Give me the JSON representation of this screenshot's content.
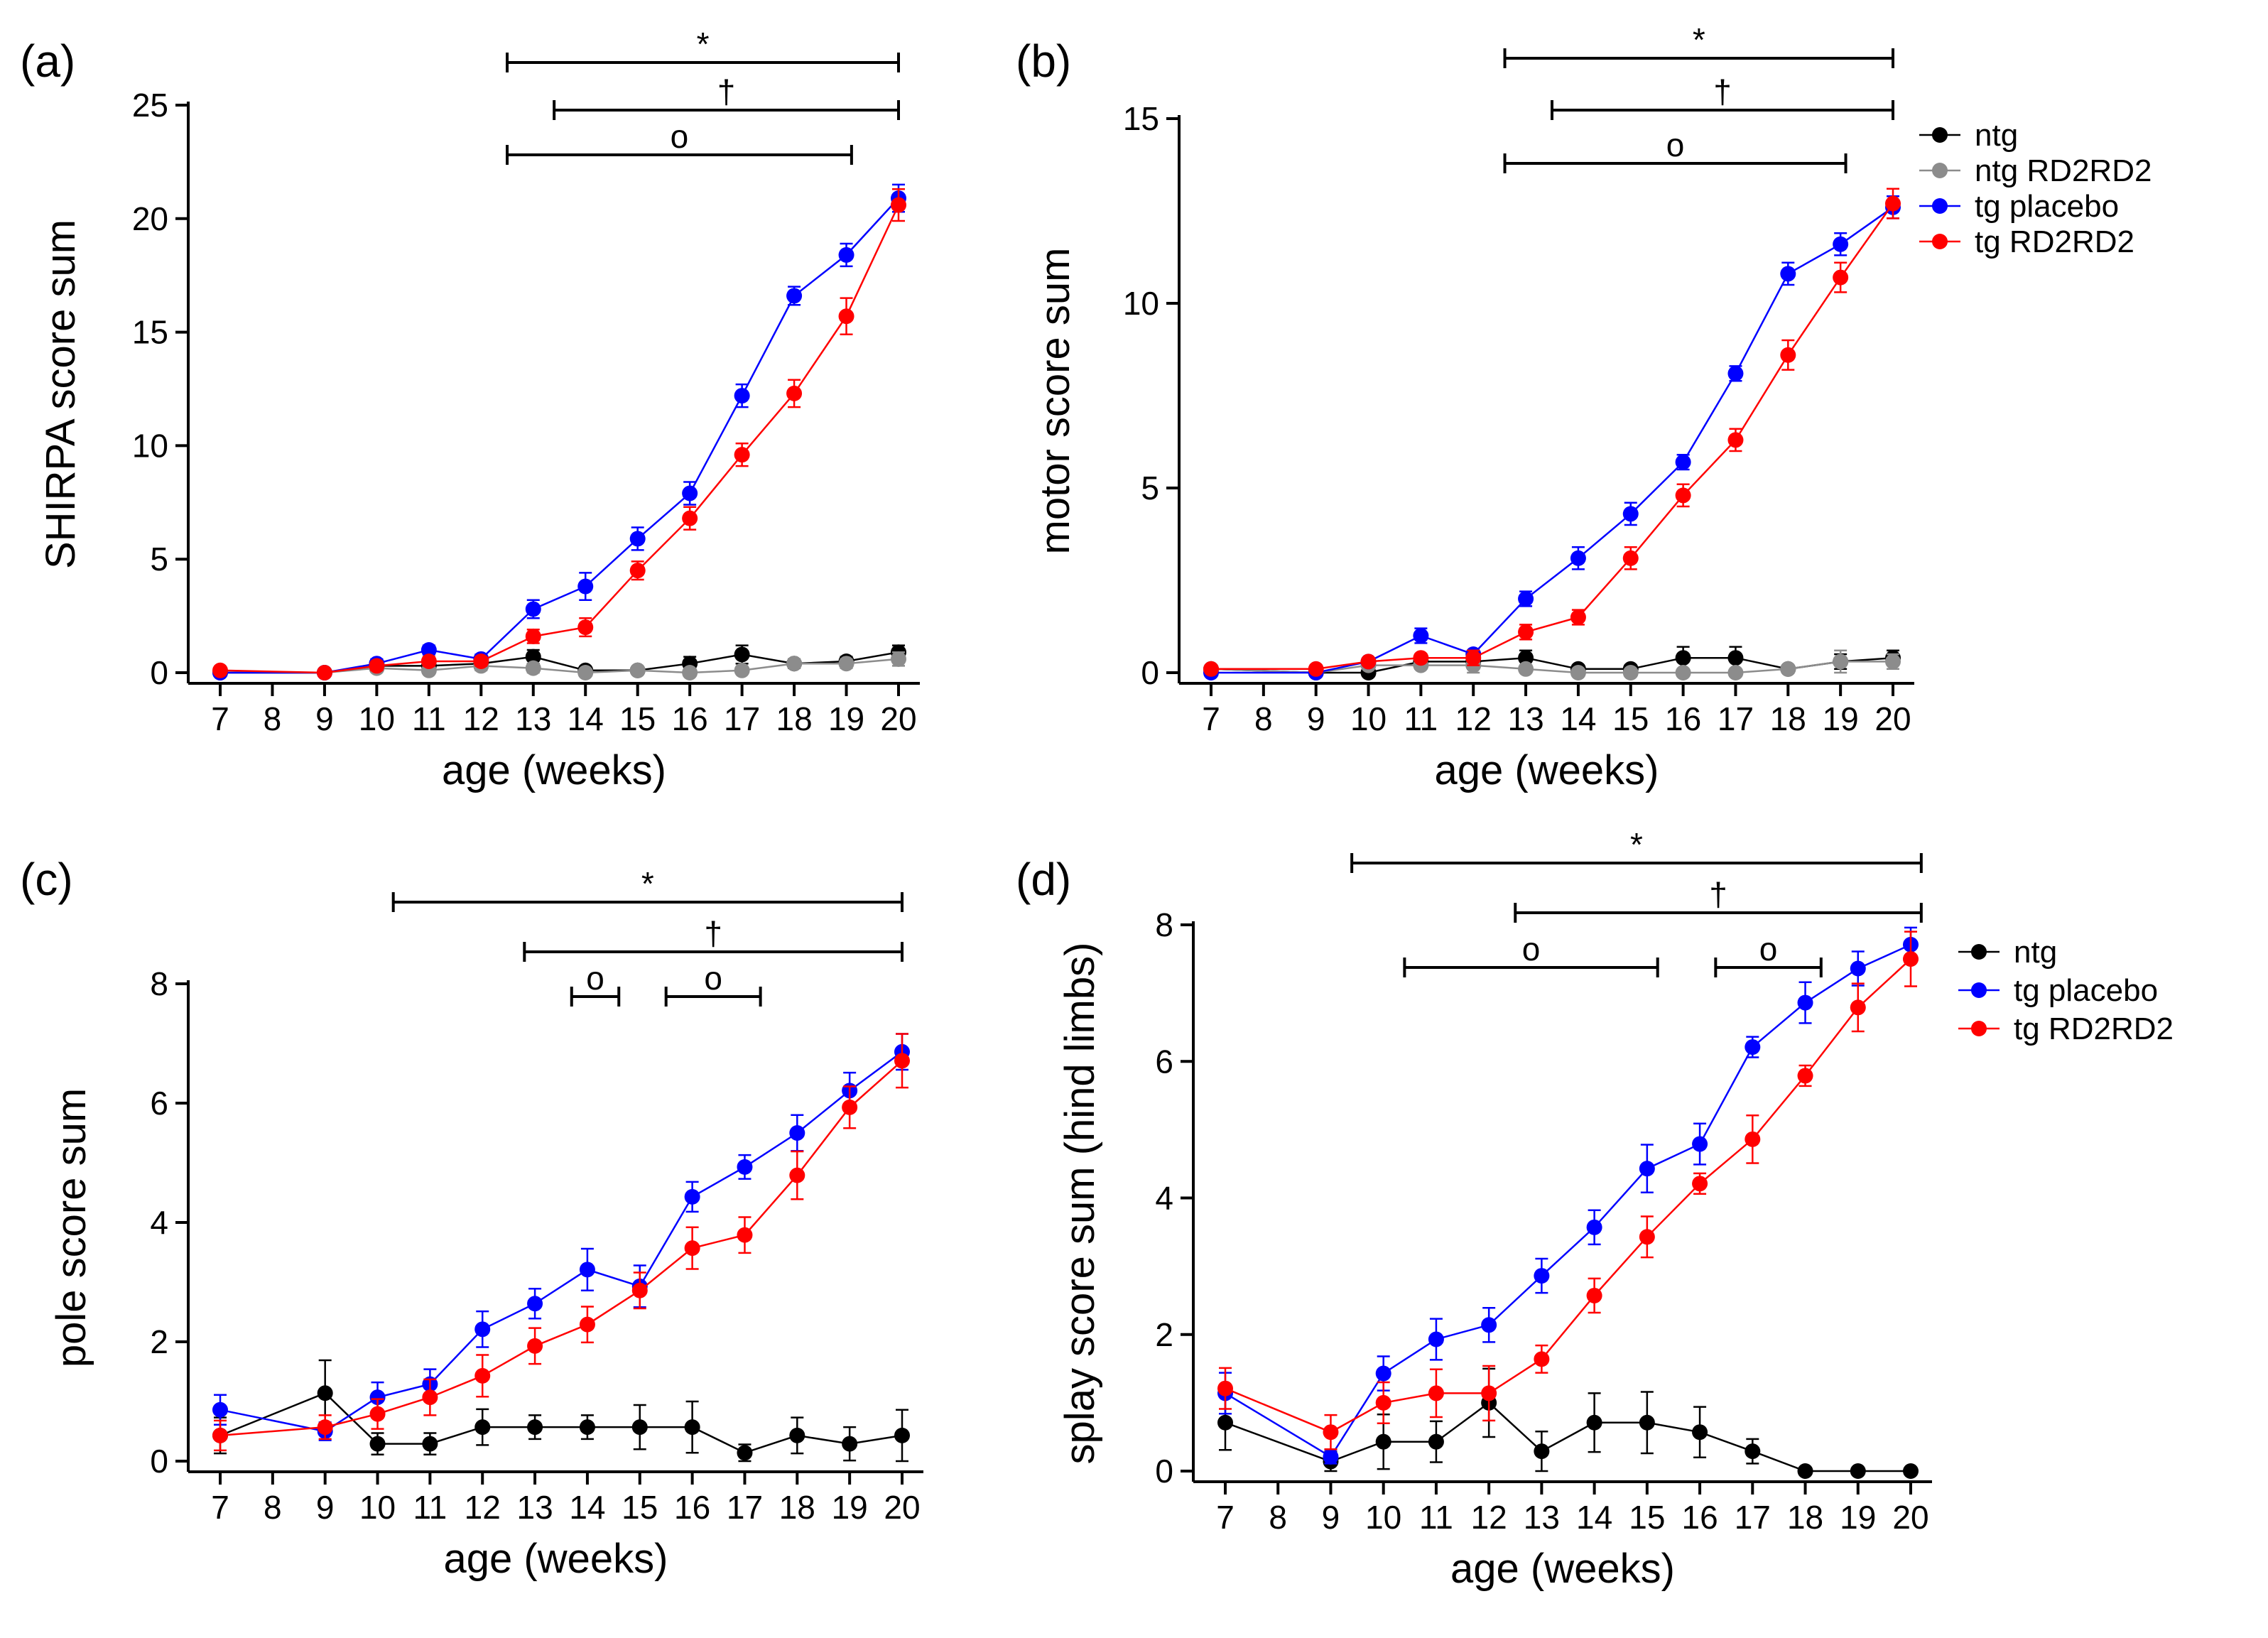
{
  "figure": {
    "x_categories": [
      7,
      8,
      9,
      10,
      11,
      12,
      13,
      14,
      15,
      16,
      17,
      18,
      19,
      20
    ],
    "legend_a_b": [
      "ntg",
      "ntg RD2RD2",
      "tg placebo",
      "tg RD2RD2"
    ],
    "legend_c_d": [
      "ntg",
      "tg placebo",
      "tg RD2RD2"
    ],
    "colors": {
      "ntg": "#000000",
      "ntg RD2RD2": "#8c8c8c",
      "tg placebo": "#0000ff",
      "tg RD2RD2": "#ff0000"
    }
  },
  "chart_data": [
    {
      "panel": "(a)",
      "type": "line",
      "title": "",
      "xlabel": "age (weeks)",
      "ylabel": "SHIRPA score sum",
      "ylim": [
        0,
        25
      ],
      "yticks": [
        0,
        5,
        10,
        15,
        20,
        25
      ],
      "x": [
        7,
        9,
        10,
        11,
        12,
        13,
        14,
        15,
        16,
        17,
        18,
        19,
        20
      ],
      "series": [
        {
          "name": "ntg",
          "values": [
            0.0,
            0.0,
            0.3,
            0.3,
            0.4,
            0.7,
            0.1,
            0.1,
            0.4,
            0.8,
            0.4,
            0.5,
            0.9
          ],
          "errors": [
            0.1,
            0.1,
            0.2,
            0.2,
            0.2,
            0.3,
            0.1,
            0.1,
            0.3,
            0.4,
            0.2,
            0.2,
            0.3
          ]
        },
        {
          "name": "ntg RD2RD2",
          "values": [
            0.0,
            0.0,
            0.2,
            0.1,
            0.3,
            0.2,
            0.0,
            0.1,
            0.0,
            0.1,
            0.4,
            0.4,
            0.6
          ],
          "errors": [
            0.1,
            0.1,
            0.1,
            0.1,
            0.2,
            0.2,
            0.1,
            0.1,
            0.1,
            0.1,
            0.2,
            0.2,
            0.3
          ]
        },
        {
          "name": "tg placebo",
          "values": [
            0.0,
            0.0,
            0.4,
            1.0,
            0.6,
            2.8,
            3.8,
            5.9,
            7.9,
            12.2,
            16.6,
            18.4,
            20.9
          ],
          "errors": [
            0.1,
            0.1,
            0.2,
            0.2,
            0.2,
            0.4,
            0.6,
            0.5,
            0.5,
            0.5,
            0.4,
            0.5,
            0.6
          ]
        },
        {
          "name": "tg RD2RD2",
          "values": [
            0.1,
            0.0,
            0.3,
            0.5,
            0.5,
            1.6,
            2.0,
            4.5,
            6.8,
            9.6,
            12.3,
            15.7,
            20.6
          ],
          "errors": [
            0.1,
            0.1,
            0.2,
            0.2,
            0.2,
            0.3,
            0.4,
            0.4,
            0.5,
            0.5,
            0.6,
            0.8,
            0.7
          ]
        }
      ],
      "significance": [
        {
          "symbol": "*",
          "from": 12.5,
          "to": 20
        },
        {
          "symbol": "†",
          "from": 13.4,
          "to": 20
        },
        {
          "symbol": "o",
          "from": 12.5,
          "to": 19.1
        }
      ]
    },
    {
      "panel": "(b)",
      "type": "line",
      "title": "",
      "xlabel": "age (weeks)",
      "ylabel": "motor score sum",
      "ylim": [
        0,
        15
      ],
      "yticks": [
        0,
        5,
        10,
        15
      ],
      "x": [
        7,
        9,
        10,
        11,
        12,
        13,
        14,
        15,
        16,
        17,
        18,
        19,
        20
      ],
      "series": [
        {
          "name": "ntg",
          "values": [
            0.1,
            0.0,
            0.0,
            0.3,
            0.3,
            0.4,
            0.1,
            0.1,
            0.4,
            0.4,
            0.1,
            0.3,
            0.4
          ],
          "errors": [
            0.1,
            0.1,
            0.1,
            0.2,
            0.2,
            0.2,
            0.1,
            0.1,
            0.3,
            0.3,
            0.1,
            0.2,
            0.2
          ]
        },
        {
          "name": "ntg RD2RD2",
          "values": [
            0.1,
            0.0,
            0.2,
            0.2,
            0.2,
            0.1,
            0.0,
            0.0,
            0.0,
            0.0,
            0.1,
            0.3,
            0.3
          ],
          "errors": [
            0.1,
            0.1,
            0.1,
            0.1,
            0.2,
            0.1,
            0.1,
            0.1,
            0.1,
            0.1,
            0.1,
            0.3,
            0.2
          ]
        },
        {
          "name": "tg placebo",
          "values": [
            0.0,
            0.0,
            0.3,
            1.0,
            0.5,
            2.0,
            3.1,
            4.3,
            5.7,
            8.1,
            10.8,
            11.6,
            12.6
          ],
          "errors": [
            0.1,
            0.1,
            0.1,
            0.2,
            0.1,
            0.2,
            0.3,
            0.3,
            0.2,
            0.2,
            0.3,
            0.3,
            0.3
          ]
        },
        {
          "name": "tg RD2RD2",
          "values": [
            0.1,
            0.1,
            0.3,
            0.4,
            0.4,
            1.1,
            1.5,
            3.1,
            4.8,
            6.3,
            8.6,
            10.7,
            12.7
          ],
          "errors": [
            0.1,
            0.1,
            0.1,
            0.1,
            0.2,
            0.2,
            0.2,
            0.3,
            0.3,
            0.3,
            0.4,
            0.4,
            0.4
          ]
        }
      ],
      "significance": [
        {
          "symbol": "*",
          "from": 12.6,
          "to": 20
        },
        {
          "symbol": "†",
          "from": 13.5,
          "to": 20
        },
        {
          "symbol": "o",
          "from": 12.6,
          "to": 19.1
        }
      ]
    },
    {
      "panel": "(c)",
      "type": "line",
      "title": "",
      "xlabel": "age (weeks)",
      "ylabel": "pole score sum",
      "ylim": [
        0,
        8
      ],
      "yticks": [
        0,
        2,
        4,
        6,
        8
      ],
      "x": [
        7,
        9,
        10,
        11,
        12,
        13,
        14,
        15,
        16,
        17,
        18,
        19,
        20
      ],
      "series": [
        {
          "name": "ntg",
          "values": [
            0.43,
            1.14,
            0.29,
            0.29,
            0.57,
            0.57,
            0.57,
            0.57,
            0.57,
            0.14,
            0.43,
            0.29,
            0.43
          ],
          "errors": [
            0.3,
            0.55,
            0.18,
            0.18,
            0.3,
            0.2,
            0.2,
            0.37,
            0.43,
            0.14,
            0.3,
            0.28,
            0.43
          ]
        },
        {
          "name": "tg placebo",
          "values": [
            0.86,
            0.5,
            1.07,
            1.29,
            2.21,
            2.64,
            3.21,
            2.93,
            4.43,
            4.93,
            5.5,
            6.21,
            6.86
          ],
          "errors": [
            0.25,
            0.15,
            0.25,
            0.25,
            0.3,
            0.25,
            0.35,
            0.35,
            0.25,
            0.2,
            0.3,
            0.3,
            0.3
          ]
        },
        {
          "name": "tg RD2RD2",
          "values": [
            0.43,
            0.57,
            0.79,
            1.07,
            1.43,
            1.93,
            2.29,
            2.86,
            3.57,
            3.79,
            4.79,
            5.93,
            6.71
          ],
          "errors": [
            0.25,
            0.2,
            0.25,
            0.3,
            0.35,
            0.3,
            0.3,
            0.3,
            0.35,
            0.3,
            0.4,
            0.35,
            0.45
          ]
        }
      ],
      "significance": [
        {
          "symbol": "*",
          "from": 10.3,
          "to": 20
        },
        {
          "symbol": "†",
          "from": 12.8,
          "to": 20
        },
        {
          "symbol": "o",
          "from": 13.7,
          "to": 14.6
        },
        {
          "symbol": "o",
          "from": 15.5,
          "to": 17.3
        }
      ]
    },
    {
      "panel": "(d)",
      "type": "line",
      "title": "",
      "xlabel": "age (weeks)",
      "ylabel": "splay score sum (hind limbs)",
      "ylim": [
        0,
        8
      ],
      "yticks": [
        0,
        2,
        4,
        6,
        8
      ],
      "x": [
        7,
        9,
        10,
        11,
        12,
        13,
        14,
        15,
        16,
        17,
        18,
        19,
        20
      ],
      "series": [
        {
          "name": "ntg",
          "values": [
            0.71,
            0.14,
            0.43,
            0.43,
            1.0,
            0.29,
            0.71,
            0.71,
            0.57,
            0.29,
            0.0,
            0.0,
            0.0
          ],
          "errors": [
            0.4,
            0.14,
            0.4,
            0.3,
            0.5,
            0.29,
            0.43,
            0.45,
            0.37,
            0.18,
            0.0,
            0.0,
            0.0
          ]
        },
        {
          "name": "tg placebo",
          "values": [
            1.14,
            0.21,
            1.43,
            1.93,
            2.14,
            2.86,
            3.57,
            4.43,
            4.79,
            6.21,
            6.86,
            7.36,
            7.71
          ],
          "errors": [
            0.3,
            0.1,
            0.25,
            0.3,
            0.25,
            0.25,
            0.25,
            0.35,
            0.3,
            0.15,
            0.3,
            0.25,
            0.25
          ]
        },
        {
          "name": "tg RD2RD2",
          "values": [
            1.21,
            0.57,
            1.0,
            1.14,
            1.14,
            1.64,
            2.57,
            3.43,
            4.21,
            4.86,
            5.79,
            6.79,
            7.5
          ],
          "errors": [
            0.3,
            0.25,
            0.3,
            0.35,
            0.4,
            0.2,
            0.25,
            0.3,
            0.15,
            0.35,
            0.15,
            0.35,
            0.4
          ]
        }
      ],
      "significance": [
        {
          "symbol": "*",
          "from": 9.4,
          "to": 20.2
        },
        {
          "symbol": "†",
          "from": 12.5,
          "to": 20.2
        },
        {
          "symbol": "o",
          "from": 10.4,
          "to": 15.2
        },
        {
          "symbol": "o",
          "from": 16.3,
          "to": 18.3
        }
      ]
    }
  ]
}
